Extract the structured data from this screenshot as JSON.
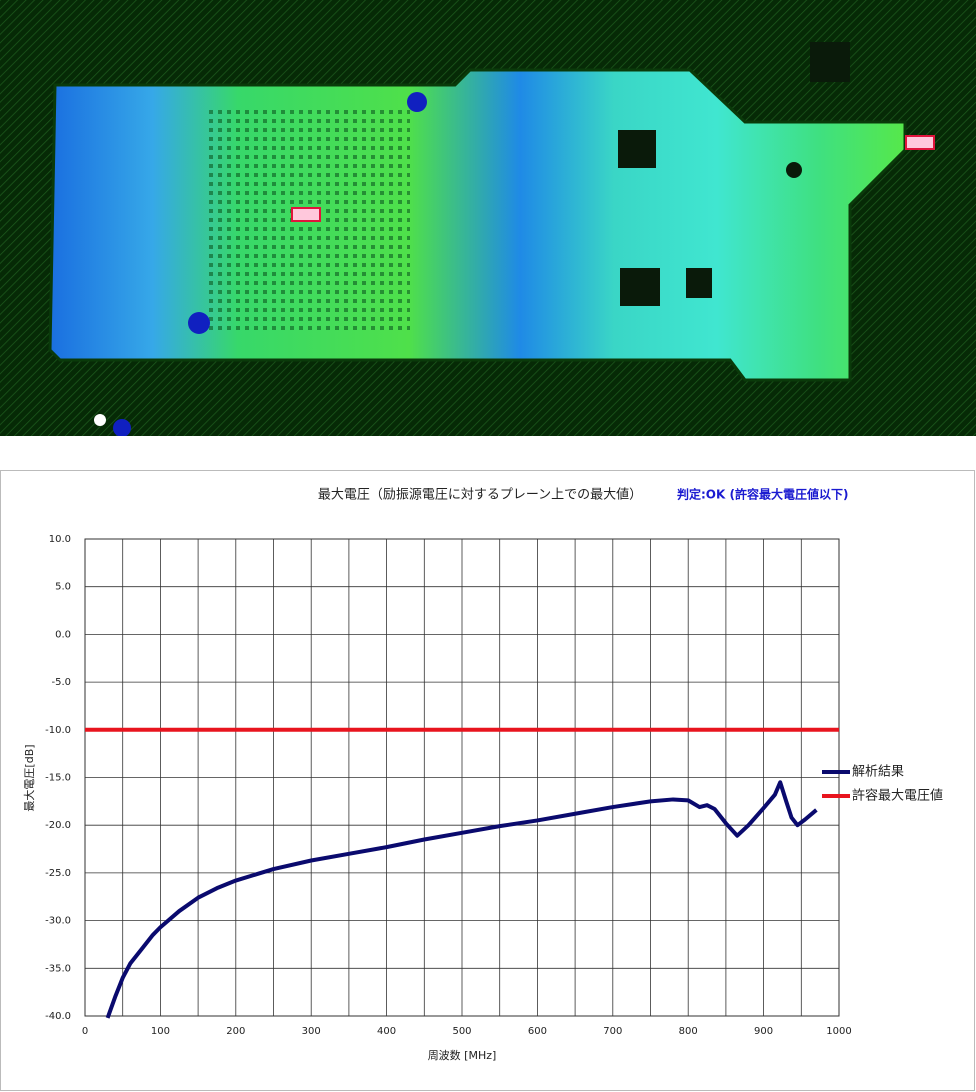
{
  "chart_data": {
    "type": "line",
    "title": "最大電圧（励振源電圧に対するプレーン上での最大値）",
    "annotation": "判定:OK (許容最大電圧値以下)",
    "xlabel": "周波数 [MHz]",
    "ylabel": "最大電圧[dB]",
    "xlim": [
      0,
      1000
    ],
    "ylim": [
      -40,
      10
    ],
    "xticks": [
      0,
      100,
      200,
      300,
      400,
      500,
      600,
      700,
      800,
      900,
      1000
    ],
    "minor_xgrid": [
      50,
      150,
      250,
      350,
      450,
      550,
      650,
      750,
      850,
      950
    ],
    "yticks": [
      {
        "value": 10,
        "label": "10.0"
      },
      {
        "value": 5,
        "label": "5.0"
      },
      {
        "value": 0,
        "label": "0.0"
      },
      {
        "value": -5,
        "label": "-5.0"
      },
      {
        "value": -10,
        "label": "-10.0"
      },
      {
        "value": -15,
        "label": "-15.0"
      },
      {
        "value": -20,
        "label": "-20.0"
      },
      {
        "value": -25,
        "label": "-25.0"
      },
      {
        "value": -30,
        "label": "-30.0"
      },
      {
        "value": -35,
        "label": "-35.0"
      },
      {
        "value": -40,
        "label": "-40.0"
      }
    ],
    "grid": true,
    "series": [
      {
        "name": "解析結果",
        "color": "#0a0a6e",
        "x": [
          30,
          40,
          50,
          60,
          75,
          90,
          100,
          125,
          150,
          175,
          200,
          250,
          300,
          350,
          400,
          450,
          500,
          550,
          600,
          650,
          700,
          750,
          780,
          800,
          815,
          825,
          835,
          850,
          865,
          880,
          900,
          915,
          922,
          930,
          937,
          945,
          955,
          970
        ],
        "values": [
          -40.2,
          -38,
          -36,
          -34.5,
          -33,
          -31.5,
          -30.7,
          -29,
          -27.6,
          -26.6,
          -25.8,
          -24.6,
          -23.7,
          -23,
          -22.3,
          -21.5,
          -20.8,
          -20.1,
          -19.5,
          -18.8,
          -18.1,
          -17.5,
          -17.3,
          -17.4,
          -18.1,
          -17.9,
          -18.3,
          -19.8,
          -21.1,
          -20,
          -18.2,
          -16.8,
          -15.5,
          -17.5,
          -19.2,
          -20,
          -19.4,
          -18.4
        ]
      },
      {
        "name": "許容最大電圧値",
        "color": "#e8141e",
        "x": [
          0,
          1000
        ],
        "values": [
          -10,
          -10
        ]
      }
    ]
  }
}
